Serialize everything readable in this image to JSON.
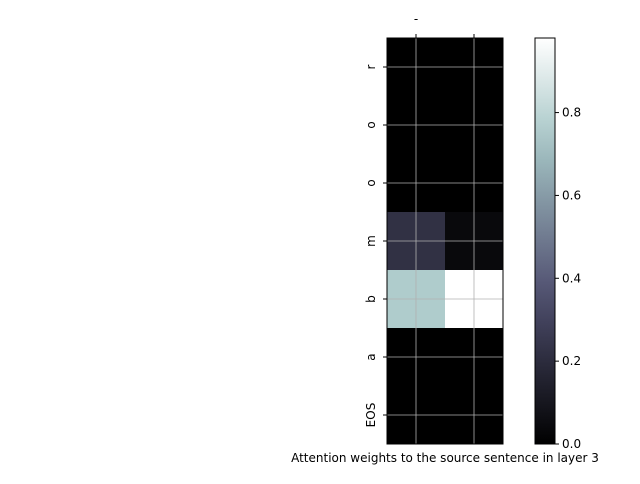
{
  "chart_data": {
    "type": "heatmap",
    "title": "",
    "xlabel": "Attention weights to the source sentence in layer 3",
    "ylabel": "",
    "x_tick_labels": [
      "-",
      ""
    ],
    "y_tick_labels": [
      "r",
      "o",
      "o",
      "m",
      "b",
      "a",
      "EOS"
    ],
    "values": [
      [
        0.0,
        0.0
      ],
      [
        0.0,
        0.0
      ],
      [
        0.0,
        0.0
      ],
      [
        0.22,
        0.04
      ],
      [
        0.76,
        0.98
      ],
      [
        0.0,
        0.0
      ],
      [
        0.0,
        0.0
      ]
    ],
    "colormap": "bone",
    "grid": true,
    "colorbar": {
      "min": 0.0,
      "max": 0.98,
      "ticks": [
        0.0,
        0.2,
        0.4,
        0.6,
        0.8
      ],
      "tick_labels": [
        "0.0",
        "0.2",
        "0.4",
        "0.6",
        "0.8"
      ]
    }
  }
}
